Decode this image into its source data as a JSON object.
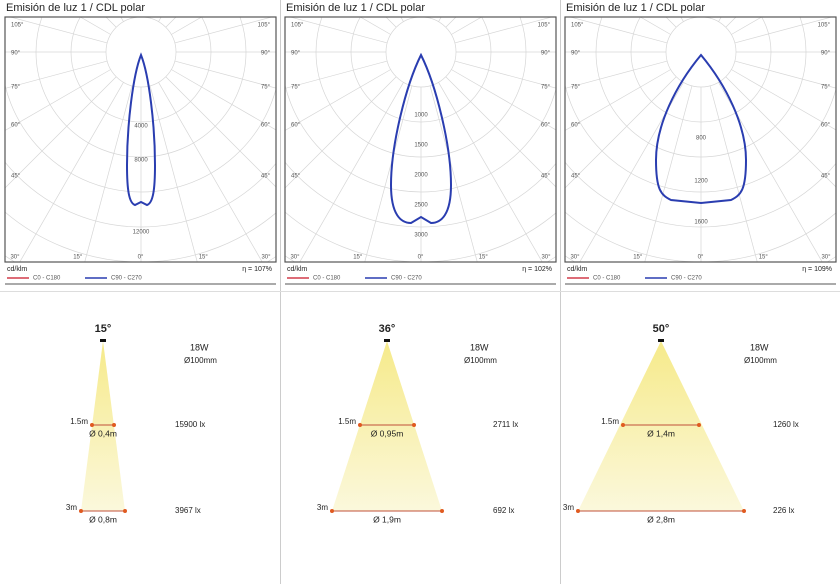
{
  "panels": [
    {
      "polar": {
        "title": "Emisión de luz 1 / CDL polar",
        "side_labels": [
          "105°",
          "90°",
          "75°",
          "60°",
          "45°"
        ],
        "bottom_labels": [
          "30°",
          "15°",
          "0°",
          "15°",
          "30°"
        ],
        "radial_labels": [
          "4000",
          "8000",
          "12000"
        ],
        "unit": "cd/klm",
        "efficiency": "η = 107%",
        "legend": [
          "C0 - C180",
          "C90 - C270"
        ]
      },
      "beam": {
        "angle": "15°",
        "power": "18W",
        "size": "Ø100mm",
        "levels": [
          {
            "distance": "1.5m",
            "diameter": "Ø 0,4m",
            "lux": "15900 lx"
          },
          {
            "distance": "3m",
            "diameter": "Ø 0,8m",
            "lux": "3967 lx"
          }
        ]
      }
    },
    {
      "polar": {
        "title": "Emisión de luz 1 / CDL polar",
        "side_labels": [
          "105°",
          "90°",
          "75°",
          "60°",
          "45°"
        ],
        "bottom_labels": [
          "30°",
          "15°",
          "0°",
          "15°",
          "30°"
        ],
        "radial_labels": [
          "1000",
          "1500",
          "2000",
          "2500",
          "3000"
        ],
        "unit": "cd/klm",
        "efficiency": "η = 102%",
        "legend": [
          "C0 - C180",
          "C90 - C270"
        ]
      },
      "beam": {
        "angle": "36°",
        "power": "18W",
        "size": "Ø100mm",
        "levels": [
          {
            "distance": "1.5m",
            "diameter": "Ø 0,95m",
            "lux": "2711 lx"
          },
          {
            "distance": "3m",
            "diameter": "Ø 1,9m",
            "lux": "692 lx"
          }
        ]
      }
    },
    {
      "polar": {
        "title": "Emisión de luz 1 / CDL polar",
        "side_labels": [
          "105°",
          "90°",
          "75°",
          "60°",
          "45°"
        ],
        "bottom_labels": [
          "30°",
          "15°",
          "0°",
          "15°",
          "30°"
        ],
        "radial_labels": [
          "800",
          "1200",
          "1600"
        ],
        "unit": "cd/klm",
        "efficiency": "η = 109%",
        "legend": [
          "C0 - C180",
          "C90 - C270"
        ]
      },
      "beam": {
        "angle": "50°",
        "power": "18W",
        "size": "Ø100mm",
        "levels": [
          {
            "distance": "1.5m",
            "diameter": "Ø 1,4m",
            "lux": "1260 lx"
          },
          {
            "distance": "3m",
            "diameter": "Ø 2,8m",
            "lux": "226 lx"
          }
        ]
      }
    }
  ]
}
